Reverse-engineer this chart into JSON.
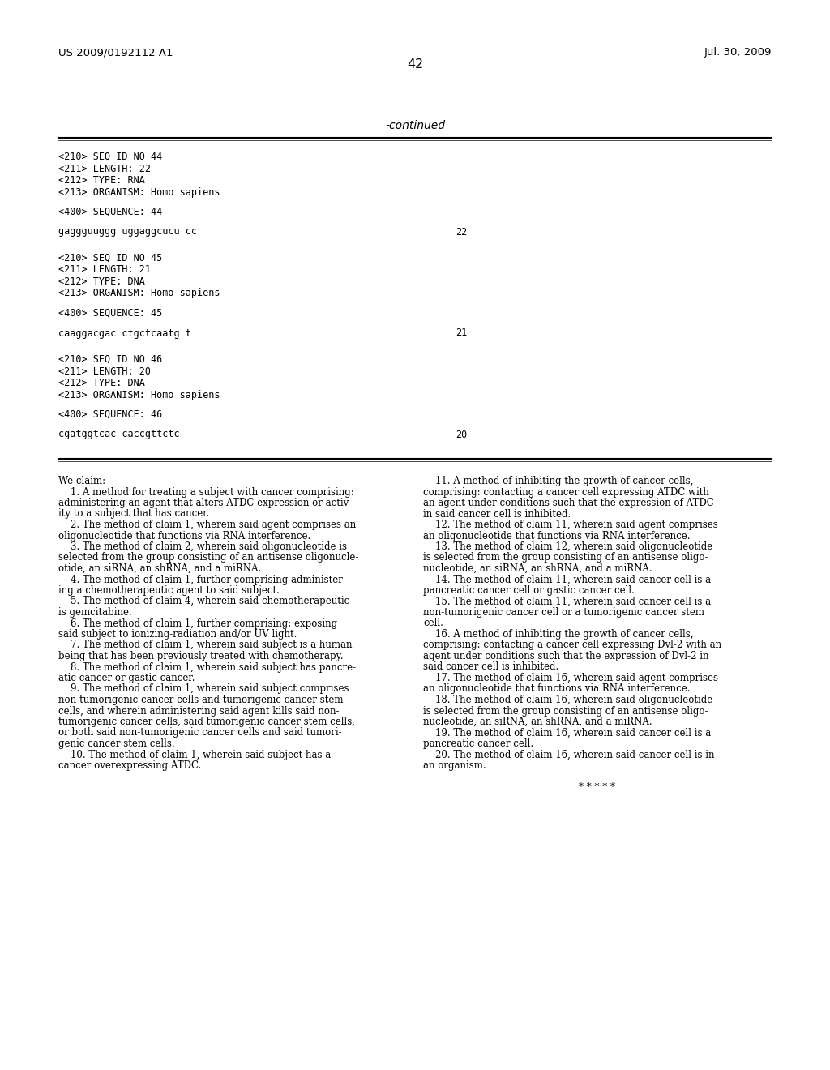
{
  "background_color": "#ffffff",
  "header_left": "US 2009/0192112 A1",
  "header_right": "Jul. 30, 2009",
  "page_number": "42",
  "continued_label": "-continued",
  "seq_blocks": [
    {
      "meta": [
        "<210> SEQ ID NO 44",
        "<211> LENGTH: 22",
        "<212> TYPE: RNA",
        "<213> ORGANISM: Homo sapiens"
      ],
      "seq_label": "<400> SEQUENCE: 44",
      "sequence": "gaggguuggg uggaggcucu cc",
      "seq_num": "22"
    },
    {
      "meta": [
        "<210> SEQ ID NO 45",
        "<211> LENGTH: 21",
        "<212> TYPE: DNA",
        "<213> ORGANISM: Homo sapiens"
      ],
      "seq_label": "<400> SEQUENCE: 45",
      "sequence": "caaggacgac ctgctcaatg t",
      "seq_num": "21"
    },
    {
      "meta": [
        "<210> SEQ ID NO 46",
        "<211> LENGTH: 20",
        "<212> TYPE: DNA",
        "<213> ORGANISM: Homo sapiens"
      ],
      "seq_label": "<400> SEQUENCE: 46",
      "sequence": "cgatggtcac caccgttctc",
      "seq_num": "20"
    }
  ],
  "claims_left": [
    [
      "We claim:",
      false
    ],
    [
      "    1. A method for treating a subject with cancer comprising:",
      false
    ],
    [
      "administering an agent that alters ATDC expression or activ-",
      false
    ],
    [
      "ity to a subject that has cancer.",
      false
    ],
    [
      "    2. The method of claim 1, wherein said agent comprises an",
      false
    ],
    [
      "oligonucleotide that functions via RNA interference.",
      false
    ],
    [
      "    3. The method of claim 2, wherein said oligonucleotide is",
      false
    ],
    [
      "selected from the group consisting of an antisense oligonucle-",
      false
    ],
    [
      "otide, an siRNA, an shRNA, and a miRNA.",
      false
    ],
    [
      "    4. The method of claim 1, further comprising administer-",
      false
    ],
    [
      "ing a chemotherapeutic agent to said subject.",
      false
    ],
    [
      "    5. The method of claim 4, wherein said chemotherapeutic",
      false
    ],
    [
      "is gemcitabine.",
      false
    ],
    [
      "    6. The method of claim 1, further comprising: exposing",
      false
    ],
    [
      "said subject to ionizing-radiation and/or UV light.",
      false
    ],
    [
      "    7. The method of claim 1, wherein said subject is a human",
      false
    ],
    [
      "being that has been previously treated with chemotherapy.",
      false
    ],
    [
      "    8. The method of claim 1, wherein said subject has pancre-",
      false
    ],
    [
      "atic cancer or gastic cancer.",
      false
    ],
    [
      "    9. The method of claim 1, wherein said subject comprises",
      false
    ],
    [
      "non-tumorigenic cancer cells and tumorigenic cancer stem",
      false
    ],
    [
      "cells, and wherein administering said agent kills said non-",
      false
    ],
    [
      "tumorigenic cancer cells, said tumorigenic cancer stem cells,",
      false
    ],
    [
      "or both said non-tumorigenic cancer cells and said tumori-",
      false
    ],
    [
      "genic cancer stem cells.",
      false
    ],
    [
      "    10. The method of claim 1, wherein said subject has a",
      false
    ],
    [
      "cancer overexpressing ATDC.",
      false
    ]
  ],
  "claims_right": [
    [
      "    11. A method of inhibiting the growth of cancer cells,",
      false
    ],
    [
      "comprising: contacting a cancer cell expressing ATDC with",
      false
    ],
    [
      "an agent under conditions such that the expression of ATDC",
      false
    ],
    [
      "in said cancer cell is inhibited.",
      false
    ],
    [
      "    12. The method of claim 11, wherein said agent comprises",
      false
    ],
    [
      "an oligonucleotide that functions via RNA interference.",
      false
    ],
    [
      "    13. The method of claim 12, wherein said oligonucleotide",
      false
    ],
    [
      "is selected from the group consisting of an antisense oligo-",
      false
    ],
    [
      "nucleotide, an siRNA, an shRNA, and a miRNA.",
      false
    ],
    [
      "    14. The method of claim 11, wherein said cancer cell is a",
      false
    ],
    [
      "pancreatic cancer cell or gastic cancer cell.",
      false
    ],
    [
      "    15. The method of claim 11, wherein said cancer cell is a",
      false
    ],
    [
      "non-tumorigenic cancer cell or a tumorigenic cancer stem",
      false
    ],
    [
      "cell.",
      false
    ],
    [
      "    16. A method of inhibiting the growth of cancer cells,",
      false
    ],
    [
      "comprising: contacting a cancer cell expressing Dvl-2 with an",
      false
    ],
    [
      "agent under conditions such that the expression of Dvl-2 in",
      false
    ],
    [
      "said cancer cell is inhibited.",
      false
    ],
    [
      "    17. The method of claim 16, wherein said agent comprises",
      false
    ],
    [
      "an oligonucleotide that functions via RNA interference.",
      false
    ],
    [
      "    18. The method of claim 16, wherein said oligonucleotide",
      false
    ],
    [
      "is selected from the group consisting of an antisense oligo-",
      false
    ],
    [
      "nucleotide, an siRNA, an shRNA, and a miRNA.",
      false
    ],
    [
      "    19. The method of claim 16, wherein said cancer cell is a",
      false
    ],
    [
      "pancreatic cancer cell.",
      false
    ],
    [
      "    20. The method of claim 16, wherein said cancer cell is in",
      false
    ],
    [
      "an organism.",
      false
    ],
    [
      "",
      false
    ],
    [
      "* * * * *",
      true
    ]
  ]
}
